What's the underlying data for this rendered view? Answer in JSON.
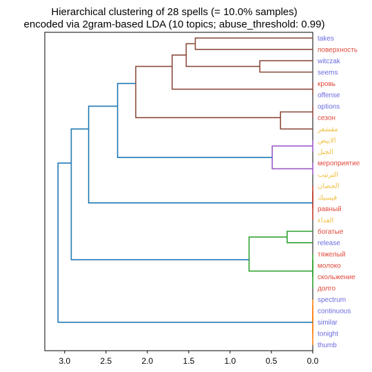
{
  "chart_data": {
    "type": "dendrogram",
    "title_lines": [
      "Hierarchical clustering of 28 spells (= 10.0% samples)",
      "encoded via 2gram-based LDA (10 topics; abuse_threshold: 0.99)"
    ],
    "orientation": "left",
    "x_ticks": [
      3.0,
      2.5,
      2.0,
      1.5,
      1.0,
      0.5,
      0.0
    ],
    "x_tick_labels": [
      "3.0",
      "2.5",
      "2.0",
      "1.5",
      "1.0",
      "0.5",
      "0.0"
    ],
    "xlim": [
      3.24,
      0.0
    ],
    "label_colors": {
      "latin": "#6a6ae0",
      "cyrillic": "#e04a3c",
      "arabic": "#f0be3c"
    },
    "leaves": [
      {
        "label": "takes",
        "script": "latin"
      },
      {
        "label": "поверхность",
        "script": "cyrillic"
      },
      {
        "label": "witczak",
        "script": "latin"
      },
      {
        "label": "seems",
        "script": "latin"
      },
      {
        "label": "кровь",
        "script": "cyrillic"
      },
      {
        "label": "offense",
        "script": "latin"
      },
      {
        "label": "options",
        "script": "latin"
      },
      {
        "label": "сезон",
        "script": "cyrillic"
      },
      {
        "label": "مقشعر",
        "script": "arabic"
      },
      {
        "label": "الابيض",
        "script": "arabic"
      },
      {
        "label": "الجبل",
        "script": "arabic"
      },
      {
        "label": "мероприятие",
        "script": "cyrillic"
      },
      {
        "label": "الترتيب",
        "script": "arabic"
      },
      {
        "label": "الحصان",
        "script": "arabic"
      },
      {
        "label": "فيسيك",
        "script": "arabic"
      },
      {
        "label": "равный",
        "script": "cyrillic"
      },
      {
        "label": "الغداء",
        "script": "arabic"
      },
      {
        "label": "богатые",
        "script": "cyrillic"
      },
      {
        "label": "release",
        "script": "latin"
      },
      {
        "label": "тяжелый",
        "script": "cyrillic"
      },
      {
        "label": "молоко",
        "script": "cyrillic"
      },
      {
        "label": "скольжение",
        "script": "cyrillic"
      },
      {
        "label": "долго",
        "script": "cyrillic"
      },
      {
        "label": "spectrum",
        "script": "latin"
      },
      {
        "label": "continuous",
        "script": "latin"
      },
      {
        "label": "similar",
        "script": "latin"
      },
      {
        "label": "tonight",
        "script": "latin"
      },
      {
        "label": "thumb",
        "script": "latin"
      }
    ],
    "cluster_colors": {
      "brown": "#8c4b3c",
      "purple": "#9b59c7",
      "red": "#c0392b",
      "green": "#2ca02c",
      "orange": "#ff7f0e",
      "blue": "#1f77b4"
    },
    "links": [
      {
        "left_leaves": [
          4
        ],
        "right_leaves": [
          5
        ],
        "height": 0.0,
        "color": "brown"
      },
      {
        "left_leaves": [
          0
        ],
        "right_leaves": [
          1
        ],
        "height": 1.42,
        "color": "brown"
      },
      {
        "left_leaves": [
          2
        ],
        "right_leaves": [
          3
        ],
        "height": 0.64,
        "color": "brown"
      },
      {
        "left_leaves": [
          0,
          1
        ],
        "right_leaves": [
          2,
          3
        ],
        "height": 1.53,
        "color": "brown"
      },
      {
        "left_leaves": [
          0,
          1,
          2,
          3
        ],
        "right_leaves": [
          4,
          5
        ],
        "height": 1.7,
        "color": "brown"
      },
      {
        "left_leaves": [
          6
        ],
        "right_leaves": [
          7
        ],
        "height": 0.0,
        "color": "brown"
      },
      {
        "left_leaves": [
          6,
          7
        ],
        "right_leaves": [
          8
        ],
        "height": 0.39,
        "color": "brown"
      },
      {
        "left_leaves": [
          0,
          1,
          2,
          3,
          4,
          5
        ],
        "right_leaves": [
          6,
          7,
          8
        ],
        "height": 2.14,
        "color": "brown"
      },
      {
        "left_leaves": [
          9
        ],
        "right_leaves": [
          10
        ],
        "height": 0.0,
        "color": "purple"
      },
      {
        "left_leaves": [
          11
        ],
        "right_leaves": [
          12
        ],
        "height": 0.0,
        "color": "purple"
      },
      {
        "left_leaves": [
          9,
          10
        ],
        "right_leaves": [
          11,
          12
        ],
        "height": 0.49,
        "color": "purple"
      },
      {
        "left_leaves": [
          0,
          1,
          2,
          3,
          4,
          5,
          6,
          7,
          8
        ],
        "right_leaves": [
          9,
          10,
          11,
          12
        ],
        "height": 2.36,
        "color": "blue"
      },
      {
        "left_leaves": [
          13
        ],
        "right_leaves": [
          14
        ],
        "height": 0.0,
        "color": "red"
      },
      {
        "left_leaves": [
          13,
          14
        ],
        "right_leaves": [
          15
        ],
        "height": 0.0,
        "color": "red"
      },
      {
        "left_leaves": [
          13,
          14,
          15
        ],
        "right_leaves": [
          16
        ],
        "height": 0.0,
        "color": "red"
      },
      {
        "left_leaves": [
          0,
          1,
          2,
          3,
          4,
          5,
          6,
          7,
          8,
          9,
          10,
          11,
          12
        ],
        "right_leaves": [
          13,
          14,
          15,
          16
        ],
        "height": 2.71,
        "color": "blue"
      },
      {
        "left_leaves": [
          17
        ],
        "right_leaves": [
          18
        ],
        "height": 0.31,
        "color": "green"
      },
      {
        "left_leaves": [
          19
        ],
        "right_leaves": [
          20
        ],
        "height": 0.0,
        "color": "green"
      },
      {
        "left_leaves": [
          19,
          20
        ],
        "right_leaves": [
          21
        ],
        "height": 0.0,
        "color": "green"
      },
      {
        "left_leaves": [
          19,
          20,
          21
        ],
        "right_leaves": [
          22
        ],
        "height": 0.0,
        "color": "green"
      },
      {
        "left_leaves": [
          17,
          18
        ],
        "right_leaves": [
          19,
          20,
          21,
          22
        ],
        "height": 0.77,
        "color": "green"
      },
      {
        "left_leaves": [
          0,
          1,
          2,
          3,
          4,
          5,
          6,
          7,
          8,
          9,
          10,
          11,
          12,
          13,
          14,
          15,
          16
        ],
        "right_leaves": [
          17,
          18,
          19,
          20,
          21,
          22
        ],
        "height": 2.92,
        "color": "blue"
      },
      {
        "left_leaves": [
          23
        ],
        "right_leaves": [
          24
        ],
        "height": 0.0,
        "color": "orange"
      },
      {
        "left_leaves": [
          23,
          24
        ],
        "right_leaves": [
          25
        ],
        "height": 0.0,
        "color": "orange"
      },
      {
        "left_leaves": [
          23,
          24,
          25
        ],
        "right_leaves": [
          26
        ],
        "height": 0.0,
        "color": "orange"
      },
      {
        "left_leaves": [
          23,
          24,
          25,
          26
        ],
        "right_leaves": [
          27
        ],
        "height": 0.0,
        "color": "orange"
      },
      {
        "left_leaves": [
          0,
          1,
          2,
          3,
          4,
          5,
          6,
          7,
          8,
          9,
          10,
          11,
          12,
          13,
          14,
          15,
          16,
          17,
          18,
          19,
          20,
          21,
          22
        ],
        "right_leaves": [
          23,
          24,
          25,
          26,
          27
        ],
        "height": 3.08,
        "color": "blue"
      }
    ]
  }
}
